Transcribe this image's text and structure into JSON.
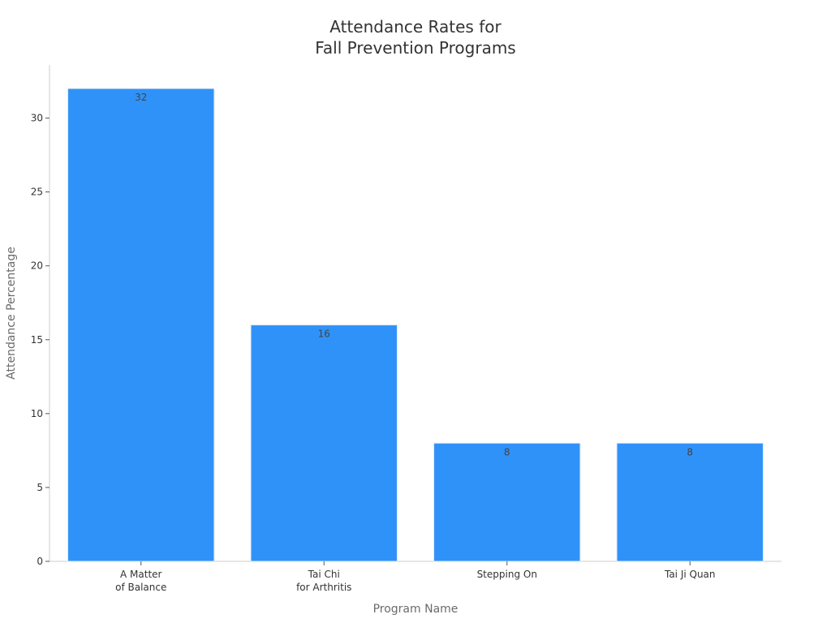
{
  "chart_data": {
    "type": "bar",
    "title": [
      "Attendance Rates for",
      "Fall Prevention Programs"
    ],
    "xlabel": "Program Name",
    "ylabel": "Attendance Percentage",
    "categories": [
      [
        "A Matter",
        "of Balance"
      ],
      [
        "Tai Chi",
        "for Arthritis"
      ],
      [
        "Stepping On"
      ],
      [
        "Tai Ji Quan"
      ]
    ],
    "values": [
      32,
      16,
      8,
      8
    ],
    "data_labels": [
      "32",
      "16",
      "8",
      "8"
    ],
    "yticks": [
      0,
      5,
      10,
      15,
      20,
      25,
      30
    ],
    "ylim": [
      0,
      33.6
    ],
    "bar_color": "#2f92f9",
    "grid": false,
    "legend": "none"
  }
}
